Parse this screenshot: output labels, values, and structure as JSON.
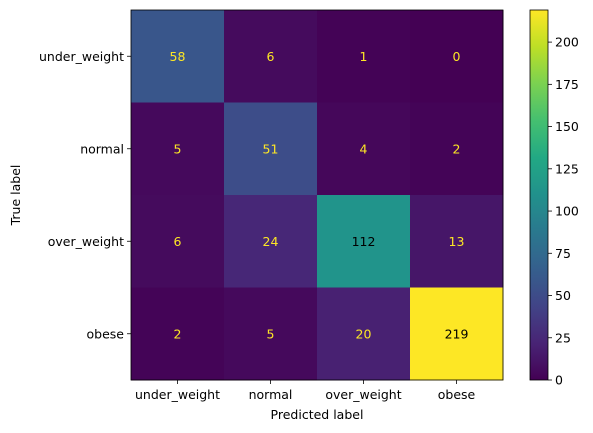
{
  "chart_data": {
    "type": "heatmap",
    "title": "",
    "xlabel": "Predicted label",
    "ylabel": "True label",
    "x_categories": [
      "under_weight",
      "normal",
      "over_weight",
      "obese"
    ],
    "y_categories": [
      "under_weight",
      "normal",
      "over_weight",
      "obese"
    ],
    "values": [
      [
        58,
        6,
        1,
        0
      ],
      [
        5,
        51,
        4,
        2
      ],
      [
        6,
        24,
        112,
        13
      ],
      [
        2,
        5,
        20,
        219
      ]
    ],
    "colormap": "viridis",
    "colorbar": {
      "vmin": 0,
      "vmax": 219,
      "ticks": [
        0,
        25,
        50,
        75,
        100,
        125,
        150,
        175,
        200
      ]
    },
    "text_colors": {
      "on_dark": "#fde725",
      "on_light": "#000000"
    },
    "grid": false
  }
}
